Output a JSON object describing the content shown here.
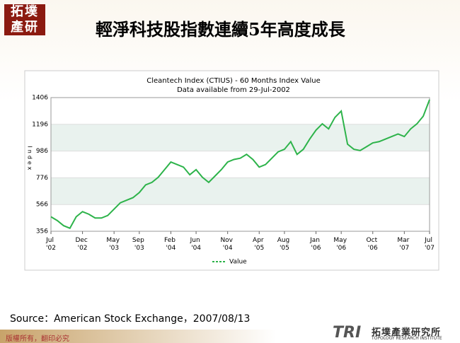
{
  "header": {
    "logo": "拓墣產研",
    "title": "輕淨科技股指數連續5年高度成長"
  },
  "chart_data": {
    "type": "line",
    "title": "Cleantech Index (CTIUS) - 60 Months Index Value",
    "subtitle": "Data available from 29-Jul-2002",
    "y_label": "Index",
    "x": [
      "2002-07",
      "2002-08",
      "2002-09",
      "2002-10",
      "2002-11",
      "2002-12",
      "2003-01",
      "2003-02",
      "2003-03",
      "2003-04",
      "2003-05",
      "2003-06",
      "2003-07",
      "2003-08",
      "2003-09",
      "2003-10",
      "2003-11",
      "2003-12",
      "2004-01",
      "2004-02",
      "2004-03",
      "2004-04",
      "2004-05",
      "2004-06",
      "2004-07",
      "2004-08",
      "2004-09",
      "2004-10",
      "2004-11",
      "2004-12",
      "2005-01",
      "2005-02",
      "2005-03",
      "2005-04",
      "2005-05",
      "2005-06",
      "2005-07",
      "2005-08",
      "2005-09",
      "2005-10",
      "2005-11",
      "2005-12",
      "2006-01",
      "2006-02",
      "2006-03",
      "2006-04",
      "2006-05",
      "2006-06",
      "2006-07",
      "2006-08",
      "2006-09",
      "2006-10",
      "2006-11",
      "2006-12",
      "2007-01",
      "2007-02",
      "2007-03",
      "2007-04",
      "2007-05",
      "2007-06",
      "2007-07"
    ],
    "series": [
      {
        "name": "Value",
        "color": "#2db34a",
        "values": [
          470,
          440,
          400,
          380,
          470,
          510,
          490,
          460,
          460,
          480,
          530,
          580,
          600,
          620,
          660,
          720,
          740,
          780,
          840,
          900,
          880,
          860,
          800,
          840,
          780,
          740,
          790,
          840,
          900,
          920,
          930,
          960,
          920,
          860,
          880,
          930,
          980,
          1000,
          1060,
          960,
          1000,
          1080,
          1150,
          1200,
          1160,
          1250,
          1300,
          1040,
          1000,
          990,
          1020,
          1050,
          1060,
          1080,
          1100,
          1120,
          1100,
          1160,
          1200,
          1260,
          1390
        ]
      }
    ],
    "xlim": [
      "2002-07",
      "2007-07"
    ],
    "xticks": [
      {
        "value": "2002-07",
        "label": "Jul '02"
      },
      {
        "value": "2002-12",
        "label": "Dec '02"
      },
      {
        "value": "2003-05",
        "label": "May '03"
      },
      {
        "value": "2003-09",
        "label": "Sep '03"
      },
      {
        "value": "2004-02",
        "label": "Feb '04"
      },
      {
        "value": "2004-06",
        "label": "Jun '04"
      },
      {
        "value": "2004-11",
        "label": "Nov '04"
      },
      {
        "value": "2005-04",
        "label": "Apr '05"
      },
      {
        "value": "2005-08",
        "label": "Aug '05"
      },
      {
        "value": "2006-01",
        "label": "Jan '06"
      },
      {
        "value": "2006-05",
        "label": "May '06"
      },
      {
        "value": "2006-10",
        "label": "Oct '06"
      },
      {
        "value": "2007-03",
        "label": "Mar '07"
      },
      {
        "value": "2007-07",
        "label": "Jul '07"
      }
    ],
    "ylim": [
      356,
      1406
    ],
    "yticks": [
      356,
      566,
      776,
      986,
      1196,
      1406
    ],
    "grid": true
  },
  "source": "Source：American Stock Exchange，2007/08/13",
  "footer": {
    "copyright": "版權所有，翻印必究",
    "brand": "TRI",
    "org": "拓墣產業研究所",
    "org_en": "TOPOLOGY RESEARCH INSTITUTE"
  }
}
